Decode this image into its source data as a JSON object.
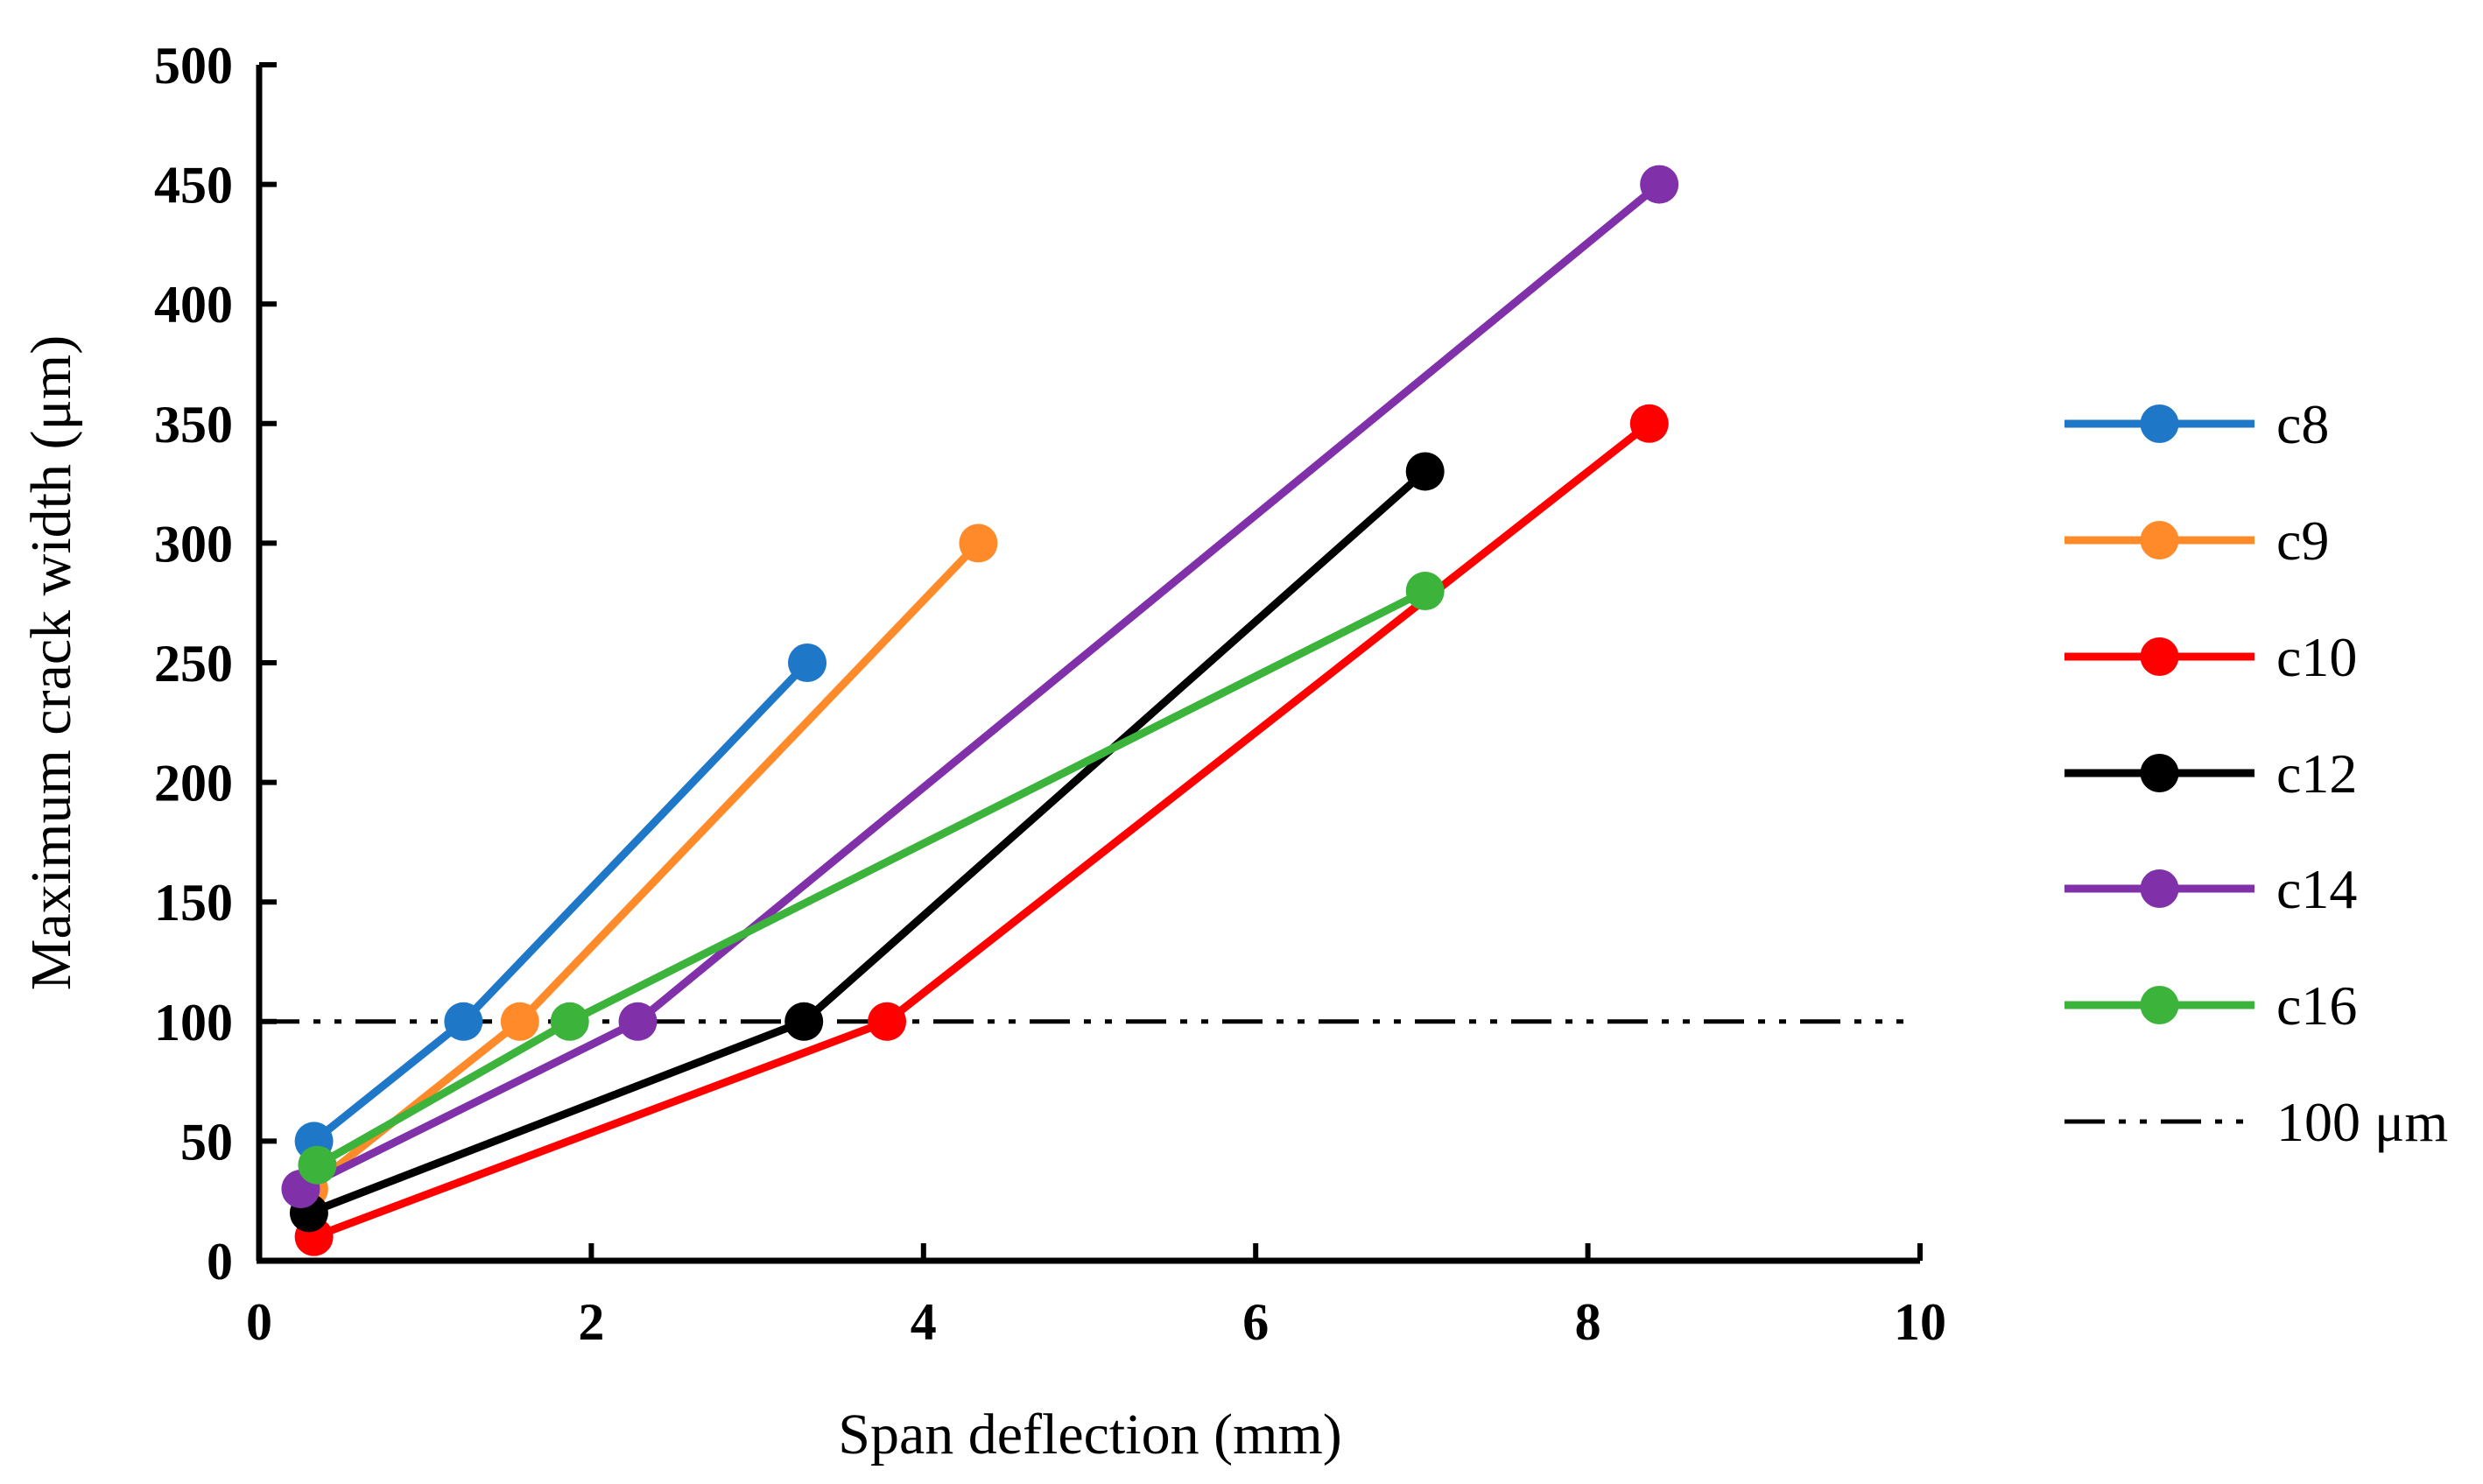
{
  "chart_data": {
    "type": "line",
    "title": "",
    "xlabel": "Span deflection (mm)",
    "ylabel": "Maximum crack width (μm)",
    "xlim": [
      0,
      10
    ],
    "ylim": [
      0,
      500
    ],
    "x_ticks": [
      0,
      2,
      4,
      6,
      8,
      10
    ],
    "x_tick_labels": [
      "0",
      "2",
      "4",
      "6",
      "8",
      "10"
    ],
    "y_ticks": [
      0,
      50,
      100,
      150,
      200,
      250,
      300,
      350,
      400,
      450,
      500
    ],
    "y_tick_labels": [
      "0",
      "50",
      "100",
      "150",
      "200",
      "250",
      "300",
      "350",
      "400",
      "450",
      "500"
    ],
    "grid": false,
    "legend_position": "right",
    "series": [
      {
        "name": "c8",
        "color": "#1f77c8",
        "x": [
          0.33,
          1.23,
          3.3
        ],
        "y": [
          50,
          100,
          250
        ]
      },
      {
        "name": "c9",
        "color": "#ff8a2a",
        "x": [
          0.3,
          1.57,
          4.33
        ],
        "y": [
          30,
          100,
          300
        ]
      },
      {
        "name": "c10",
        "color": "#ff0000",
        "x": [
          0.33,
          3.78,
          8.37
        ],
        "y": [
          10,
          100,
          350
        ]
      },
      {
        "name": "c12",
        "color": "#000000",
        "x": [
          0.3,
          3.28,
          7.02
        ],
        "y": [
          20,
          100,
          330
        ]
      },
      {
        "name": "c14",
        "color": "#8030a8",
        "x": [
          0.25,
          2.28,
          8.43
        ],
        "y": [
          30,
          100,
          450
        ]
      },
      {
        "name": "c16",
        "color": "#3cb43c",
        "x": [
          0.35,
          1.87,
          7.02
        ],
        "y": [
          40,
          100,
          280
        ]
      }
    ],
    "reference_line": {
      "name": "100 μm",
      "y": 100,
      "x_range": [
        0,
        9.9
      ],
      "style": "dash-dot",
      "color": "#000000"
    }
  }
}
